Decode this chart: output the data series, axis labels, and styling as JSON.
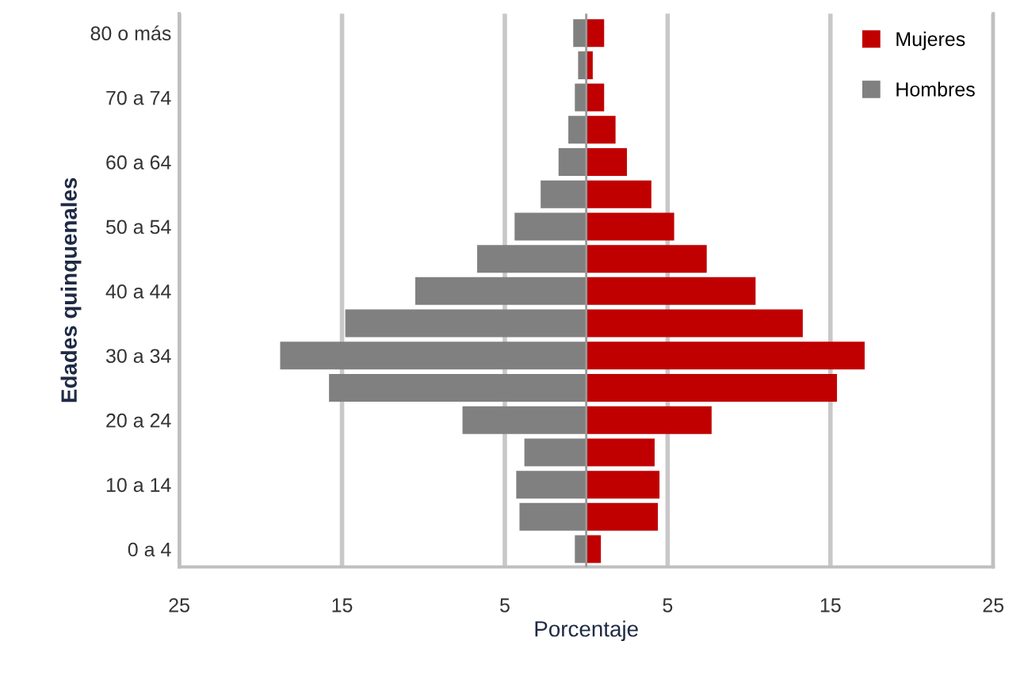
{
  "chart_data": {
    "type": "bar",
    "orientation": "horizontal",
    "stacked": true,
    "xlabel": "Porcentaje",
    "ylabel": "Edades quinquenales",
    "categories": [
      "80 o más",
      null,
      "70 a 74",
      null,
      "60 a 64",
      null,
      "50 a 54",
      null,
      "40 a 44",
      null,
      "30 a 34",
      null,
      "20 a 24",
      null,
      "10 a 14",
      null,
      "0 a 4"
    ],
    "series": [
      {
        "name": "Mujeres",
        "color": "#c00000",
        "values": [
          1.1,
          0.4,
          1.1,
          1.8,
          2.5,
          4.0,
          5.4,
          7.4,
          10.4,
          13.3,
          17.1,
          15.4,
          7.7,
          4.2,
          4.5,
          4.4,
          0.9
        ]
      },
      {
        "name": "Hombres",
        "color": "#808080",
        "values": [
          -0.8,
          -0.5,
          -0.7,
          -1.1,
          -1.7,
          -2.8,
          -4.4,
          -6.7,
          -10.5,
          -14.8,
          -18.8,
          -15.8,
          -7.6,
          -3.8,
          -4.3,
          -4.1,
          -0.7
        ]
      }
    ],
    "xlim": [
      -25,
      25
    ],
    "xticks": [
      {
        "value": -25,
        "label": "25"
      },
      {
        "value": -15,
        "label": "15"
      },
      {
        "value": -5,
        "label": "5"
      },
      {
        "value": 5,
        "label": "5"
      },
      {
        "value": 15,
        "label": "15"
      },
      {
        "value": 25,
        "label": "25"
      }
    ],
    "grid": "x",
    "legend": "top right"
  }
}
